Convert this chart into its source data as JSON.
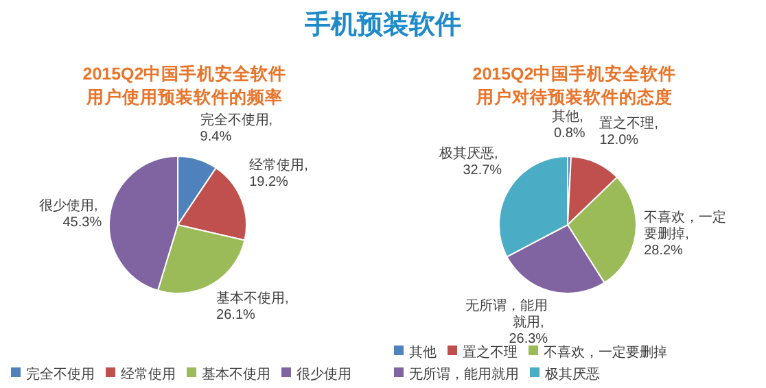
{
  "chart_data": [
    {
      "type": "pie",
      "title": "2015Q2中国手机安全软件用户使用预装软件的频率",
      "annotations": [
        "手机预装软件"
      ],
      "categories": [
        "完全不使用",
        "经常使用",
        "基本不使用",
        "很少使用"
      ],
      "values": [
        9.4,
        19.2,
        26.1,
        45.3
      ],
      "value_labels": [
        "完全不使用, 9.4%",
        "经常使用, 19.2%",
        "基本不使用, 26.1%",
        "很少使用, 45.3%"
      ],
      "colors": [
        "#4f81bd",
        "#c0504d",
        "#9bbb59",
        "#8064a2"
      ],
      "legend": "bottom"
    },
    {
      "type": "pie",
      "title": "2015Q2中国手机安全软件用户对待预装软件的态度",
      "categories": [
        "其他",
        "置之不理",
        "不喜欢，一定要删掉",
        "无所谓，能用就用",
        "极其厌恶"
      ],
      "values": [
        0.8,
        12.0,
        28.2,
        26.3,
        32.7
      ],
      "value_labels": [
        "其他, 0.8%",
        "置之不理, 12.0%",
        "不喜欢，一定要删掉, 28.2%",
        "无所谓，能用就用, 26.3%",
        "极其厌恶, 32.7%"
      ],
      "colors": [
        "#4f81bd",
        "#c0504d",
        "#9bbb59",
        "#8064a2",
        "#4bacc6"
      ],
      "legend": "bottom"
    }
  ]
}
